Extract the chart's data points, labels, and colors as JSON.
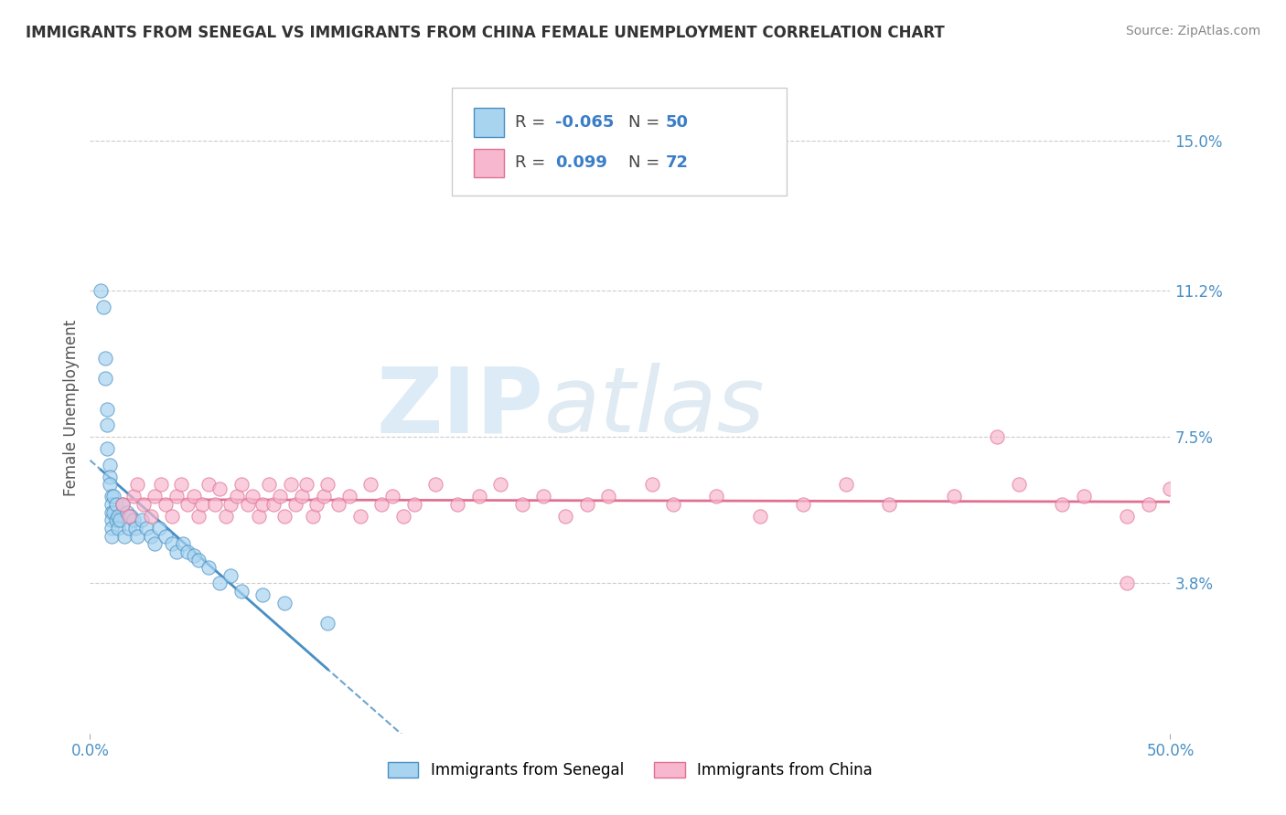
{
  "title": "IMMIGRANTS FROM SENEGAL VS IMMIGRANTS FROM CHINA FEMALE UNEMPLOYMENT CORRELATION CHART",
  "source": "Source: ZipAtlas.com",
  "ylabel": "Female Unemployment",
  "xlim": [
    0.0,
    0.5
  ],
  "ylim": [
    0.0,
    0.165
  ],
  "yticks": [
    0.038,
    0.075,
    0.112,
    0.15
  ],
  "ytick_labels": [
    "3.8%",
    "7.5%",
    "11.2%",
    "15.0%"
  ],
  "xtick_labels": [
    "0.0%",
    "50.0%"
  ],
  "senegal_color": "#a8d4f0",
  "china_color": "#f7b8cf",
  "senegal_R": "-0.065",
  "senegal_N": "50",
  "china_R": "0.099",
  "china_N": "72",
  "trend_blue_color": "#4a90c4",
  "trend_pink_color": "#e07090",
  "legend_label_senegal": "Immigrants from Senegal",
  "legend_label_china": "Immigrants from China",
  "watermark_zip": "ZIP",
  "watermark_atlas": "atlas",
  "senegal_x": [
    0.005,
    0.006,
    0.007,
    0.007,
    0.008,
    0.008,
    0.008,
    0.009,
    0.009,
    0.009,
    0.01,
    0.01,
    0.01,
    0.01,
    0.01,
    0.01,
    0.011,
    0.011,
    0.012,
    0.012,
    0.013,
    0.013,
    0.014,
    0.015,
    0.016,
    0.017,
    0.018,
    0.019,
    0.02,
    0.021,
    0.022,
    0.024,
    0.026,
    0.028,
    0.03,
    0.032,
    0.035,
    0.038,
    0.04,
    0.043,
    0.045,
    0.048,
    0.05,
    0.055,
    0.06,
    0.065,
    0.07,
    0.08,
    0.09,
    0.11
  ],
  "senegal_y": [
    0.112,
    0.108,
    0.095,
    0.09,
    0.082,
    0.078,
    0.072,
    0.068,
    0.065,
    0.063,
    0.06,
    0.058,
    0.056,
    0.054,
    0.052,
    0.05,
    0.06,
    0.056,
    0.058,
    0.054,
    0.055,
    0.052,
    0.054,
    0.058,
    0.05,
    0.056,
    0.052,
    0.055,
    0.054,
    0.052,
    0.05,
    0.054,
    0.052,
    0.05,
    0.048,
    0.052,
    0.05,
    0.048,
    0.046,
    0.048,
    0.046,
    0.045,
    0.044,
    0.042,
    0.038,
    0.04,
    0.036,
    0.035,
    0.033,
    0.028
  ],
  "china_x": [
    0.015,
    0.018,
    0.02,
    0.022,
    0.025,
    0.028,
    0.03,
    0.033,
    0.035,
    0.038,
    0.04,
    0.042,
    0.045,
    0.048,
    0.05,
    0.052,
    0.055,
    0.058,
    0.06,
    0.063,
    0.065,
    0.068,
    0.07,
    0.073,
    0.075,
    0.078,
    0.08,
    0.083,
    0.085,
    0.088,
    0.09,
    0.093,
    0.095,
    0.098,
    0.1,
    0.103,
    0.105,
    0.108,
    0.11,
    0.115,
    0.12,
    0.125,
    0.13,
    0.135,
    0.14,
    0.145,
    0.15,
    0.16,
    0.17,
    0.18,
    0.19,
    0.2,
    0.21,
    0.22,
    0.23,
    0.24,
    0.26,
    0.27,
    0.29,
    0.31,
    0.33,
    0.35,
    0.37,
    0.4,
    0.42,
    0.43,
    0.45,
    0.46,
    0.48,
    0.49,
    0.5,
    0.48
  ],
  "china_y": [
    0.058,
    0.055,
    0.06,
    0.063,
    0.058,
    0.055,
    0.06,
    0.063,
    0.058,
    0.055,
    0.06,
    0.063,
    0.058,
    0.06,
    0.055,
    0.058,
    0.063,
    0.058,
    0.062,
    0.055,
    0.058,
    0.06,
    0.063,
    0.058,
    0.06,
    0.055,
    0.058,
    0.063,
    0.058,
    0.06,
    0.055,
    0.063,
    0.058,
    0.06,
    0.063,
    0.055,
    0.058,
    0.06,
    0.063,
    0.058,
    0.06,
    0.055,
    0.063,
    0.058,
    0.06,
    0.055,
    0.058,
    0.063,
    0.058,
    0.06,
    0.063,
    0.058,
    0.06,
    0.055,
    0.058,
    0.06,
    0.063,
    0.058,
    0.06,
    0.055,
    0.058,
    0.063,
    0.058,
    0.06,
    0.075,
    0.063,
    0.058,
    0.06,
    0.055,
    0.058,
    0.062,
    0.038
  ]
}
